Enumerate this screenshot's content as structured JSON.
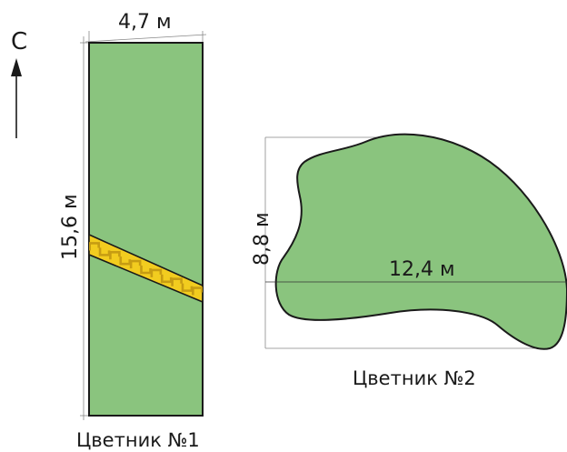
{
  "compass": {
    "label": "С"
  },
  "bed1": {
    "width_label": "4,7 м",
    "length_label": "15,6 м",
    "caption": "Цветник №1",
    "fill_color": "#8ac47e",
    "path_colors": {
      "paving": "#f2cc1f",
      "pattern": "#c69c13"
    }
  },
  "bed2": {
    "height_label": "8,8 м",
    "length_label": "12,4 м",
    "caption": "Цветник №2",
    "fill_color": "#8ac47e"
  }
}
